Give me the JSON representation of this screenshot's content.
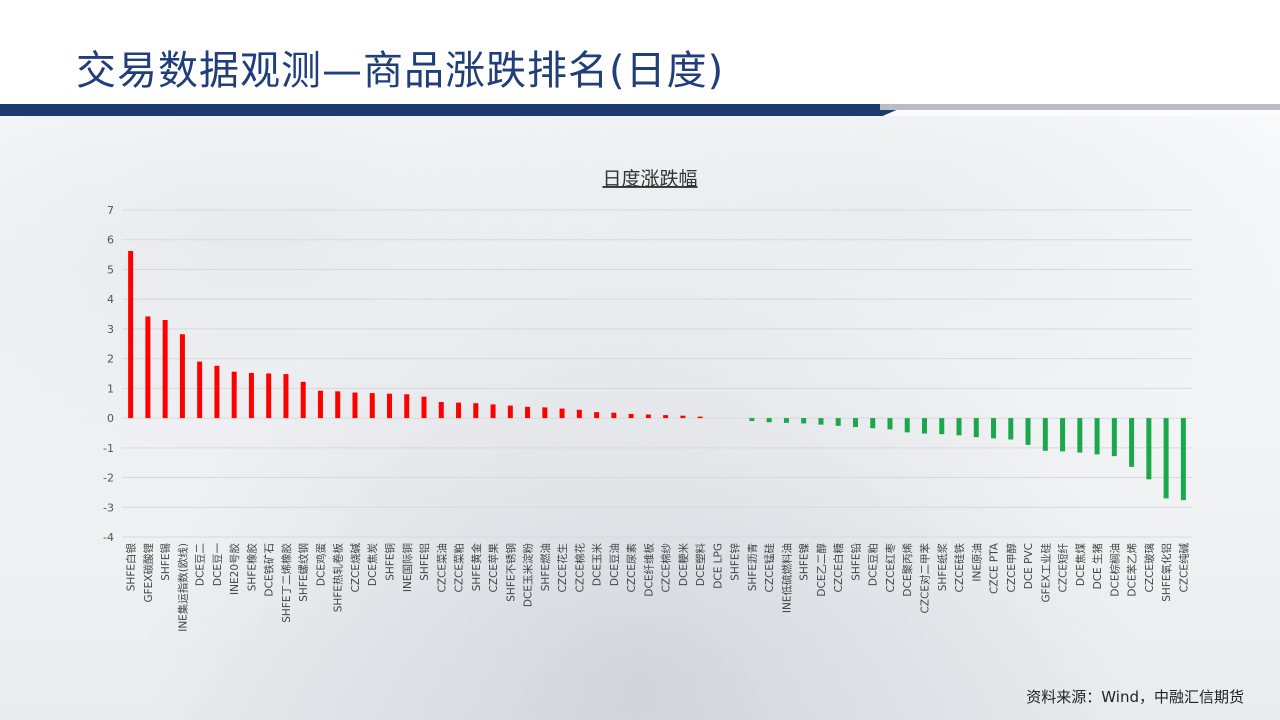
{
  "page": {
    "title": "交易数据观测—商品涨跌排名(日度)",
    "source": "资料来源：Wind，中融汇信期货"
  },
  "colors": {
    "title": "#1f3e7a",
    "navy_stripe": "#1d3a6e",
    "positive": "#ff0000",
    "negative": "#1aa84a",
    "grid": "#d9d9d9"
  },
  "chart_data": {
    "type": "bar",
    "title": "日度涨跌幅",
    "xlabel": "",
    "ylabel": "",
    "ylim": [
      -4,
      7
    ],
    "yticks": [
      7,
      6,
      5,
      4,
      3,
      2,
      1,
      0,
      -1,
      -2,
      -3,
      -4
    ],
    "grid": true,
    "legend": "none",
    "categories": [
      "SHFE白银",
      "GFEX碳酸锂",
      "SHFE锡",
      "INE集运指数(欧线)",
      "DCE豆二",
      "DCE豆一",
      "INE20号胶",
      "SHFE橡胶",
      "DCE铁矿石",
      "SHFE丁二烯橡胶",
      "SHFE螺纹钢",
      "DCE鸡蛋",
      "SHFE热轧卷板",
      "CZCE烧碱",
      "DCE焦炭",
      "SHFE铜",
      "INE国际铜",
      "SHFE铝",
      "CZCE菜油",
      "CZCE菜粕",
      "SHFE黄金",
      "CZCE苹果",
      "SHFE不锈钢",
      "DCE玉米淀粉",
      "SHFE燃油",
      "CZCE花生",
      "CZCE棉花",
      "DCE玉米",
      "DCE豆油",
      "CZCE尿素",
      "DCE纤维板",
      "CZCE棉纱",
      "DCE粳米",
      "DCE塑料",
      "DCE LPG",
      "SHFE锌",
      "SHFE沥青",
      "CZCE锰硅",
      "INE低硫燃料油",
      "SHFE镍",
      "DCE乙二醇",
      "CZCE白糖",
      "SHFE铅",
      "DCE豆粕",
      "CZCE红枣",
      "DCE聚丙烯",
      "CZCE对二甲苯",
      "SHFE纸浆",
      "CZCE硅铁",
      "INE原油",
      "CZCE PTA",
      "CZCE甲醇",
      "DCE PVC",
      "GFEX工业硅",
      "CZCE短纤",
      "DCE焦煤",
      "DCE 生猪",
      "DCE棕榈油",
      "DCE苯乙烯",
      "CZCE玻璃",
      "SHFE氧化铝",
      "CZCE纯碱"
    ],
    "values": [
      5.62,
      3.42,
      3.3,
      2.82,
      1.9,
      1.76,
      1.56,
      1.52,
      1.5,
      1.48,
      1.22,
      0.92,
      0.9,
      0.86,
      0.84,
      0.82,
      0.8,
      0.72,
      0.54,
      0.52,
      0.5,
      0.46,
      0.42,
      0.38,
      0.36,
      0.32,
      0.28,
      0.2,
      0.18,
      0.14,
      0.12,
      0.1,
      0.08,
      0.05,
      0.0,
      0.0,
      -0.1,
      -0.14,
      -0.16,
      -0.18,
      -0.22,
      -0.26,
      -0.3,
      -0.34,
      -0.38,
      -0.48,
      -0.52,
      -0.54,
      -0.58,
      -0.64,
      -0.68,
      -0.72,
      -0.9,
      -1.1,
      -1.12,
      -1.16,
      -1.22,
      -1.28,
      -1.64,
      -2.06,
      -2.7,
      -2.76
    ]
  }
}
